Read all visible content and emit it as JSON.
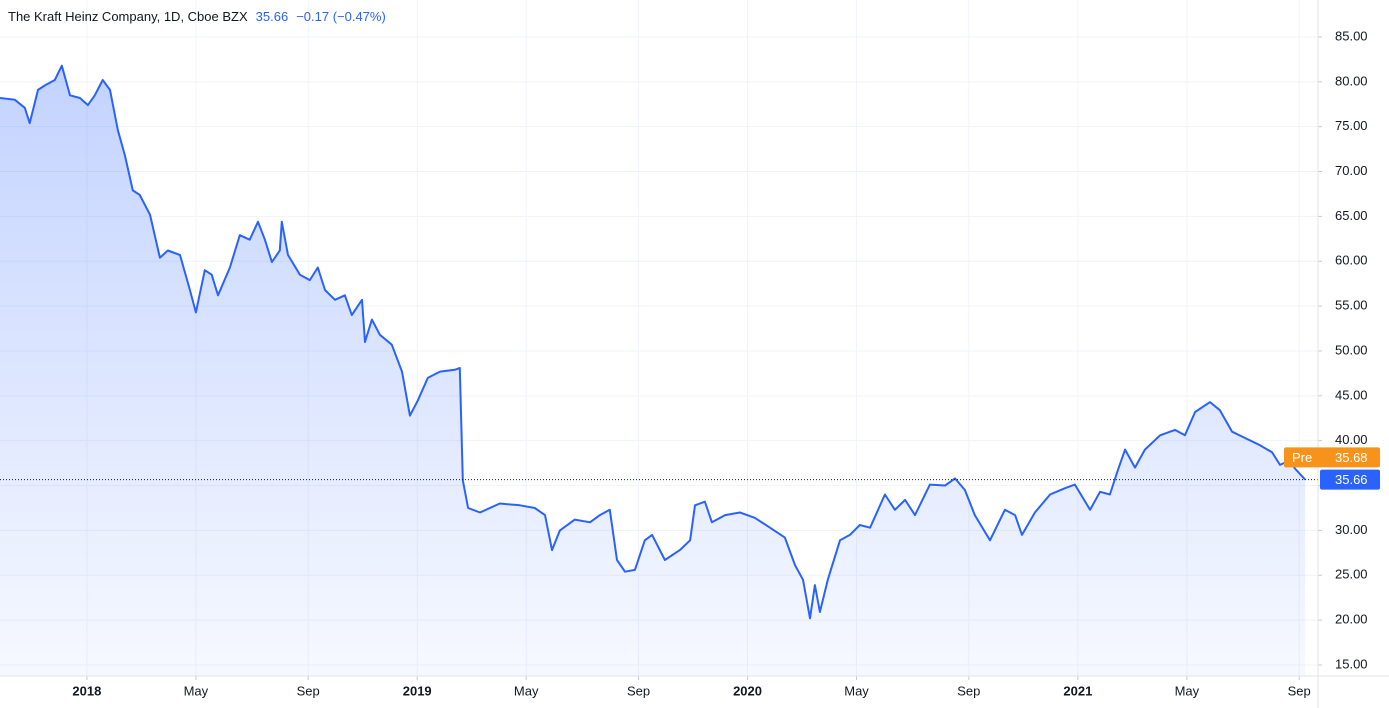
{
  "chart_data": {
    "type": "area",
    "title": "The Kraft Heinz Company, 1D, Cboe BZX",
    "price": 35.66,
    "change": "−0.17 (−0.47%)",
    "color": "#2962ff",
    "x": [
      2017.737,
      2017.782,
      2017.812,
      2017.827,
      2017.852,
      2017.873,
      2017.903,
      2017.924,
      2017.949,
      2017.979,
      2018.003,
      2018.024,
      2018.048,
      2018.07,
      2018.094,
      2018.115,
      2018.139,
      2018.16,
      2018.191,
      2018.221,
      2018.245,
      2018.282,
      2018.312,
      2018.33,
      2018.357,
      2018.378,
      2018.397,
      2018.433,
      2018.463,
      2018.493,
      2018.518,
      2018.539,
      2018.56,
      2018.584,
      2018.59,
      2018.609,
      2018.645,
      2018.675,
      2018.699,
      2018.721,
      2018.751,
      2018.781,
      2018.802,
      2018.833,
      2018.842,
      2018.863,
      2018.887,
      2018.923,
      2018.954,
      2018.978,
      2019.002,
      2019.032,
      2019.069,
      2019.114,
      2019.129,
      2019.138,
      2019.154,
      2019.19,
      2019.25,
      2019.311,
      2019.356,
      2019.387,
      2019.408,
      2019.432,
      2019.477,
      2019.523,
      2019.553,
      2019.583,
      2019.605,
      2019.629,
      2019.659,
      2019.689,
      2019.711,
      2019.75,
      2019.795,
      2019.826,
      2019.841,
      2019.871,
      2019.892,
      2019.932,
      2019.977,
      2020.022,
      2020.068,
      2020.113,
      2020.144,
      2020.168,
      2020.189,
      2020.204,
      2020.219,
      2020.243,
      2020.28,
      2020.31,
      2020.34,
      2020.371,
      2020.416,
      2020.446,
      2020.477,
      2020.507,
      2020.552,
      2020.598,
      2020.628,
      2020.658,
      2020.688,
      2020.734,
      2020.779,
      2020.81,
      2020.831,
      2020.87,
      2020.916,
      2020.961,
      2020.991,
      2021.037,
      2021.067,
      2021.097,
      2021.121,
      2021.143,
      2021.173,
      2021.203,
      2021.249,
      2021.294,
      2021.324,
      2021.355,
      2021.4,
      2021.43,
      2021.467,
      2021.506,
      2021.551,
      2021.588,
      2021.612,
      2021.642,
      2021.657,
      2021.688
    ],
    "values": [
      78.2,
      78.0,
      77.1,
      75.4,
      79.1,
      79.6,
      80.2,
      81.8,
      78.5,
      78.2,
      77.4,
      78.5,
      80.2,
      79.1,
      74.6,
      71.8,
      67.9,
      67.4,
      65.2,
      60.4,
      61.2,
      60.7,
      56.8,
      54.3,
      59.0,
      58.5,
      56.2,
      59.3,
      62.9,
      62.4,
      64.4,
      62.4,
      59.9,
      61.2,
      64.4,
      60.7,
      58.5,
      57.9,
      59.3,
      56.8,
      55.7,
      56.2,
      54.0,
      55.7,
      51.0,
      53.5,
      51.8,
      50.7,
      47.7,
      42.8,
      44.5,
      47.0,
      47.7,
      47.9,
      48.1,
      35.6,
      32.5,
      32.0,
      33.0,
      32.8,
      32.5,
      31.7,
      27.8,
      30.0,
      31.2,
      30.9,
      31.7,
      32.3,
      26.7,
      25.4,
      25.6,
      28.9,
      29.5,
      26.7,
      27.8,
      28.9,
      32.8,
      33.2,
      30.9,
      31.7,
      32.0,
      31.4,
      30.3,
      29.2,
      26.1,
      24.5,
      20.2,
      23.9,
      20.9,
      24.5,
      28.9,
      29.5,
      30.6,
      30.3,
      34.0,
      32.3,
      33.4,
      31.7,
      35.1,
      35.0,
      35.8,
      34.5,
      31.7,
      28.9,
      32.3,
      31.7,
      29.5,
      32.0,
      34.0,
      34.7,
      35.1,
      32.3,
      34.3,
      34.0,
      36.7,
      39.0,
      37.0,
      39.0,
      40.6,
      41.2,
      40.6,
      43.2,
      44.3,
      43.4,
      41.0,
      40.3,
      39.5,
      38.7,
      37.3,
      37.8,
      36.9,
      35.66
    ],
    "last_price": 35.66,
    "pre_label": "Pre",
    "pre_price": 35.68,
    "pre_color": "#f7931a",
    "xlim": [
      2017.737,
      2021.727
    ],
    "ylim": [
      13.77,
      89.12
    ],
    "xticks": [
      2018,
      {
        "value": 2018.33,
        "label": "May"
      },
      {
        "value": 2018.67,
        "label": "Sep"
      },
      2019,
      {
        "value": 2019.33,
        "label": "May"
      },
      {
        "value": 2019.67,
        "label": "Sep"
      },
      2020,
      {
        "value": 2020.33,
        "label": "May"
      },
      {
        "value": 2020.67,
        "label": "Sep"
      },
      2021,
      {
        "value": 2021.33,
        "label": "May"
      },
      {
        "value": 2021.67,
        "label": "Sep"
      }
    ],
    "yticks": [
      {
        "value": 15,
        "label": "15.00"
      },
      {
        "value": 20,
        "label": "20.00"
      },
      {
        "value": 25,
        "label": "25.00"
      },
      {
        "value": 30,
        "label": "30.00"
      },
      {
        "value": 35,
        "label": "35.00"
      },
      {
        "value": 40,
        "label": "40.00"
      },
      {
        "value": 45,
        "label": "45.00"
      },
      {
        "value": 50,
        "label": "50.00"
      },
      {
        "value": 55,
        "label": "55.00"
      },
      {
        "value": 60,
        "label": "60.00"
      },
      {
        "value": 65,
        "label": "65.00"
      },
      {
        "value": 70,
        "label": "70.00"
      },
      {
        "value": 75,
        "label": "75.00"
      },
      {
        "value": 80,
        "label": "80.00"
      },
      {
        "value": 85,
        "label": "85.00"
      }
    ],
    "grid": true
  }
}
